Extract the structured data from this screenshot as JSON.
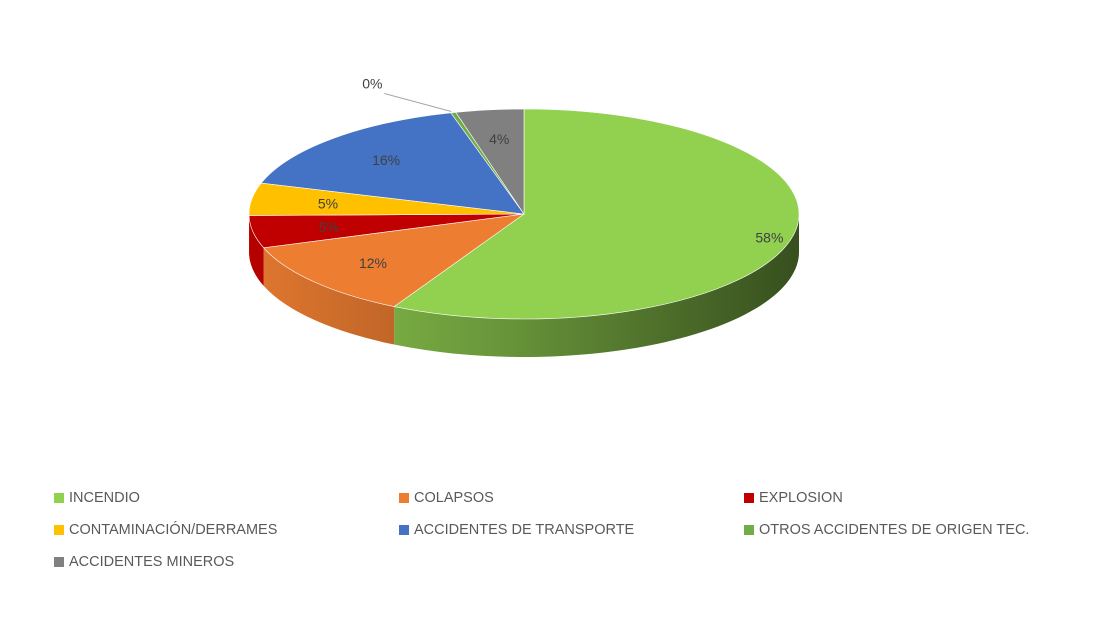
{
  "chart_data": {
    "type": "pie",
    "title": "",
    "legend_position": "bottom",
    "slices": [
      {
        "name": "INCENDIO",
        "value": 58,
        "label": "58%",
        "color": "#92d050"
      },
      {
        "name": "COLAPSOS",
        "value": 12,
        "label": "12%",
        "color": "#ed7d31"
      },
      {
        "name": "EXPLOSION",
        "value": 5,
        "label": "5%",
        "color": "#c00000"
      },
      {
        "name": "CONTAMINACIÓN/DERRAMES",
        "value": 5,
        "label": "5%",
        "color": "#ffc000"
      },
      {
        "name": "ACCIDENTES DE TRANSPORTE",
        "value": 16,
        "label": "16%",
        "color": "#4472c4"
      },
      {
        "name": "OTROS ACCIDENTES DE ORIGEN TEC.",
        "value": 0.3,
        "label": "0%",
        "color": "#70ad47"
      },
      {
        "name": "ACCIDENTES MINEROS",
        "value": 4,
        "label": "4%",
        "color": "#808080"
      }
    ]
  }
}
